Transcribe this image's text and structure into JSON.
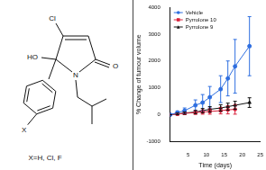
{
  "structure": {
    "atoms": {
      "chlorine": "Cl",
      "hydroxyl": "HO",
      "oxygen": "O",
      "nitrogen": "N",
      "substituent": "X"
    },
    "caption": "X=H, Cl, F"
  },
  "chart_data": {
    "type": "line",
    "y_label": "% Change of tumour volume",
    "x_label": "Time (days)",
    "xlim": [
      0,
      25
    ],
    "xticks": [
      5,
      10,
      15,
      20,
      25
    ],
    "ylim": [
      -1000,
      4000
    ],
    "yticks": [
      -1000,
      0,
      1000,
      2000,
      3000,
      4000
    ],
    "grid": false,
    "legend": "upper left",
    "series": [
      {
        "name": "Vehicle",
        "color": "#2f6fe0",
        "marker": "circle",
        "x": [
          0,
          2,
          4,
          7,
          9,
          11,
          14,
          16,
          18,
          22
        ],
        "values": [
          0,
          80,
          150,
          350,
          450,
          650,
          950,
          1350,
          1800,
          2550
        ],
        "errors": [
          0,
          60,
          100,
          200,
          300,
          400,
          500,
          650,
          1000,
          1100
        ]
      },
      {
        "name": "Pyrrolone 10",
        "color": "#d8203a",
        "marker": "square",
        "x": [
          0,
          2,
          4,
          7,
          9,
          11,
          14,
          16,
          18
        ],
        "values": [
          0,
          20,
          50,
          80,
          100,
          120,
          150,
          180,
          200
        ],
        "errors": [
          0,
          30,
          50,
          70,
          80,
          100,
          120,
          150,
          180
        ]
      },
      {
        "name": "Pyrrolone 9",
        "color": "#111111",
        "marker": "triangle",
        "x": [
          0,
          2,
          4,
          7,
          9,
          11,
          14,
          16,
          18,
          22
        ],
        "values": [
          0,
          30,
          60,
          100,
          150,
          200,
          250,
          300,
          350,
          450
        ],
        "errors": [
          0,
          30,
          40,
          60,
          80,
          100,
          120,
          130,
          150,
          180
        ]
      }
    ]
  }
}
